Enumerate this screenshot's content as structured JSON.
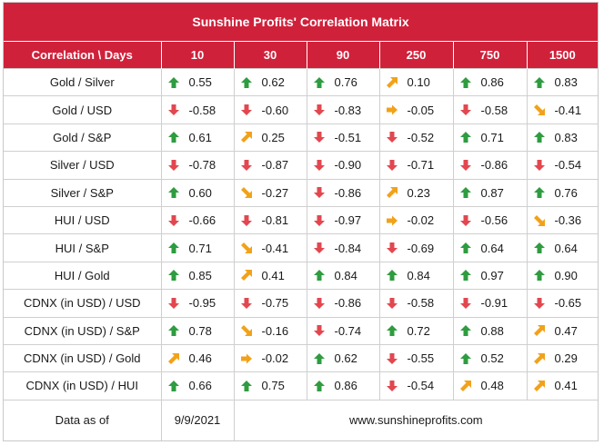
{
  "title": "Sunshine Profits' Correlation Matrix",
  "header": [
    "Correlation \\ Days",
    "10",
    "30",
    "90",
    "250",
    "750",
    "1500"
  ],
  "colors": {
    "header_bg": "#d0213b",
    "up": "#2e9c3f",
    "down": "#e2474f",
    "flat": "#f1a21a"
  },
  "rows": [
    {
      "label": "Gold / Silver",
      "cells": [
        {
          "v": "0.55",
          "a": "up"
        },
        {
          "v": "0.62",
          "a": "up"
        },
        {
          "v": "0.76",
          "a": "up"
        },
        {
          "v": "0.10",
          "a": "diag-up"
        },
        {
          "v": "0.86",
          "a": "up"
        },
        {
          "v": "0.83",
          "a": "up"
        }
      ]
    },
    {
      "label": "Gold / USD",
      "cells": [
        {
          "v": "-0.58",
          "a": "down"
        },
        {
          "v": "-0.60",
          "a": "down"
        },
        {
          "v": "-0.83",
          "a": "down"
        },
        {
          "v": "-0.05",
          "a": "right"
        },
        {
          "v": "-0.58",
          "a": "down"
        },
        {
          "v": "-0.41",
          "a": "diag-down"
        }
      ]
    },
    {
      "label": "Gold / S&P",
      "cells": [
        {
          "v": "0.61",
          "a": "up"
        },
        {
          "v": "0.25",
          "a": "diag-up"
        },
        {
          "v": "-0.51",
          "a": "down"
        },
        {
          "v": "-0.52",
          "a": "down"
        },
        {
          "v": "0.71",
          "a": "up"
        },
        {
          "v": "0.83",
          "a": "up"
        }
      ]
    },
    {
      "label": "Silver / USD",
      "cells": [
        {
          "v": "-0.78",
          "a": "down"
        },
        {
          "v": "-0.87",
          "a": "down"
        },
        {
          "v": "-0.90",
          "a": "down"
        },
        {
          "v": "-0.71",
          "a": "down"
        },
        {
          "v": "-0.86",
          "a": "down"
        },
        {
          "v": "-0.54",
          "a": "down"
        }
      ]
    },
    {
      "label": "Silver / S&P",
      "cells": [
        {
          "v": "0.60",
          "a": "up"
        },
        {
          "v": "-0.27",
          "a": "diag-down"
        },
        {
          "v": "-0.86",
          "a": "down"
        },
        {
          "v": "0.23",
          "a": "diag-up"
        },
        {
          "v": "0.87",
          "a": "up"
        },
        {
          "v": "0.76",
          "a": "up"
        }
      ]
    },
    {
      "label": "HUI / USD",
      "cells": [
        {
          "v": "-0.66",
          "a": "down"
        },
        {
          "v": "-0.81",
          "a": "down"
        },
        {
          "v": "-0.97",
          "a": "down"
        },
        {
          "v": "-0.02",
          "a": "right"
        },
        {
          "v": "-0.56",
          "a": "down"
        },
        {
          "v": "-0.36",
          "a": "diag-down"
        }
      ]
    },
    {
      "label": "HUI / S&P",
      "cells": [
        {
          "v": "0.71",
          "a": "up"
        },
        {
          "v": "-0.41",
          "a": "diag-down"
        },
        {
          "v": "-0.84",
          "a": "down"
        },
        {
          "v": "-0.69",
          "a": "down"
        },
        {
          "v": "0.64",
          "a": "up"
        },
        {
          "v": "0.64",
          "a": "up"
        }
      ]
    },
    {
      "label": "HUI / Gold",
      "cells": [
        {
          "v": "0.85",
          "a": "up"
        },
        {
          "v": "0.41",
          "a": "diag-up"
        },
        {
          "v": "0.84",
          "a": "up"
        },
        {
          "v": "0.84",
          "a": "up"
        },
        {
          "v": "0.97",
          "a": "up"
        },
        {
          "v": "0.90",
          "a": "up"
        }
      ]
    },
    {
      "label": "CDNX (in USD) / USD",
      "cells": [
        {
          "v": "-0.95",
          "a": "down"
        },
        {
          "v": "-0.75",
          "a": "down"
        },
        {
          "v": "-0.86",
          "a": "down"
        },
        {
          "v": "-0.58",
          "a": "down"
        },
        {
          "v": "-0.91",
          "a": "down"
        },
        {
          "v": "-0.65",
          "a": "down"
        }
      ]
    },
    {
      "label": "CDNX (in USD) / S&P",
      "cells": [
        {
          "v": "0.78",
          "a": "up"
        },
        {
          "v": "-0.16",
          "a": "diag-down"
        },
        {
          "v": "-0.74",
          "a": "down"
        },
        {
          "v": "0.72",
          "a": "up"
        },
        {
          "v": "0.88",
          "a": "up"
        },
        {
          "v": "0.47",
          "a": "diag-up"
        }
      ]
    },
    {
      "label": "CDNX (in USD) / Gold",
      "cells": [
        {
          "v": "0.46",
          "a": "diag-up"
        },
        {
          "v": "-0.02",
          "a": "right"
        },
        {
          "v": "0.62",
          "a": "up"
        },
        {
          "v": "-0.55",
          "a": "down"
        },
        {
          "v": "0.52",
          "a": "up"
        },
        {
          "v": "0.29",
          "a": "diag-up"
        }
      ]
    },
    {
      "label": "CDNX (in USD) / HUI",
      "cells": [
        {
          "v": "0.66",
          "a": "up"
        },
        {
          "v": "0.75",
          "a": "up"
        },
        {
          "v": "0.86",
          "a": "up"
        },
        {
          "v": "-0.54",
          "a": "down"
        },
        {
          "v": "0.48",
          "a": "diag-up"
        },
        {
          "v": "0.41",
          "a": "diag-up"
        }
      ]
    }
  ],
  "footer": {
    "label": "Data as of",
    "date": "9/9/2021",
    "website": "www.sunshineprofits.com"
  }
}
